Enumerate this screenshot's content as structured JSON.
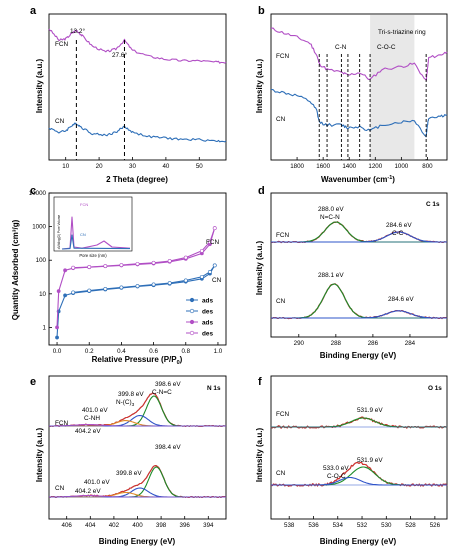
{
  "colors": {
    "fcn": "#b14fc5",
    "cn": "#2e6fb8",
    "fit_green": "#1d8c2a",
    "fit_red": "#d8322f",
    "fit_blue": "#2f54c9",
    "fit_orange": "#e08b2a",
    "shade": "#e8e8e8"
  },
  "chart_data": [
    {
      "id": "a",
      "type": "line",
      "panel_label": "a",
      "xlabel": "2 Theta (degree)",
      "ylabel": "Intensity (a.u.)",
      "xlim": [
        5,
        58
      ],
      "xticks": [
        10,
        20,
        30,
        40,
        50
      ],
      "series": [
        {
          "name": "FCN",
          "x": [
            5,
            8,
            10,
            12,
            13.2,
            15,
            18,
            22,
            25,
            27.6,
            30,
            35,
            40,
            45,
            50,
            55,
            58
          ],
          "y": [
            0.9,
            0.82,
            0.83,
            0.87,
            0.89,
            0.85,
            0.78,
            0.74,
            0.76,
            0.82,
            0.75,
            0.71,
            0.69,
            0.68,
            0.68,
            0.67,
            0.67
          ]
        },
        {
          "name": "CN",
          "x": [
            5,
            8,
            10,
            12,
            13.2,
            15,
            18,
            22,
            25,
            27.6,
            30,
            35,
            40,
            45,
            50,
            55,
            58
          ],
          "y": [
            0.22,
            0.19,
            0.2,
            0.24,
            0.25,
            0.22,
            0.18,
            0.17,
            0.19,
            0.23,
            0.19,
            0.16,
            0.15,
            0.14,
            0.14,
            0.13,
            0.13
          ]
        }
      ],
      "annotations": [
        "13.2°",
        "27.6°"
      ],
      "vlines": [
        13.2,
        27.6
      ]
    },
    {
      "id": "b",
      "type": "line",
      "panel_label": "b",
      "xlabel": "Wavenumber (cm",
      "xlabel_sup": "-1",
      "xlabel_end": ")",
      "ylabel": "Intensity (a.u.)",
      "xlim": [
        2000,
        650
      ],
      "xticks": [
        1800,
        1600,
        1400,
        1200,
        1000,
        800
      ],
      "series": [
        {
          "name": "FCN",
          "x": [
            2000,
            1900,
            1800,
            1700,
            1650,
            1630,
            1570,
            1460,
            1410,
            1320,
            1240,
            1150,
            1000,
            900,
            810,
            800,
            790,
            700,
            650
          ],
          "y": [
            0.9,
            0.87,
            0.84,
            0.8,
            0.72,
            0.66,
            0.62,
            0.6,
            0.58,
            0.6,
            0.55,
            0.62,
            0.64,
            0.66,
            0.54,
            0.62,
            0.7,
            0.72,
            0.74
          ]
        },
        {
          "name": "CN",
          "x": [
            2000,
            1900,
            1800,
            1700,
            1650,
            1630,
            1570,
            1460,
            1410,
            1320,
            1240,
            1150,
            1000,
            900,
            810,
            800,
            790,
            700,
            650
          ],
          "y": [
            0.48,
            0.46,
            0.44,
            0.4,
            0.34,
            0.26,
            0.24,
            0.24,
            0.22,
            0.23,
            0.2,
            0.24,
            0.26,
            0.27,
            0.16,
            0.24,
            0.29,
            0.3,
            0.31
          ]
        }
      ],
      "annotations": [
        "C-N",
        "C-O-C",
        "Tri-s-triazine ring"
      ],
      "vlines": [
        1630,
        1570,
        1460,
        1410,
        1320,
        1240,
        810
      ]
    },
    {
      "id": "c",
      "type": "scatter",
      "panel_label": "c",
      "xlabel": "Relative Pressure (P/P",
      "xlabel_sub": "0",
      "xlabel_end": ")",
      "ylabel": "Quantity Adsorbed (cm³/g)",
      "yscale": "log",
      "xlim": [
        -0.05,
        1.05
      ],
      "xticks": [
        0.0,
        0.2,
        0.4,
        0.6,
        0.8,
        1.0
      ],
      "ylim": [
        0.3,
        10000
      ],
      "yticklabels": [
        "1",
        "10",
        "100",
        "1000",
        "10000"
      ],
      "legend": [
        "ads",
        "des",
        "ads",
        "des"
      ],
      "series": [
        {
          "name": "ads",
          "x": [
            0.0,
            0.01,
            0.05,
            0.1,
            0.2,
            0.3,
            0.4,
            0.5,
            0.6,
            0.7,
            0.8,
            0.9,
            0.95,
            0.98
          ],
          "y": [
            0.5,
            3.0,
            9.0,
            10.5,
            12,
            13.5,
            15,
            16.5,
            18,
            20,
            23,
            28,
            40,
            70
          ]
        },
        {
          "name": "des",
          "x": [
            0.98,
            0.95,
            0.9,
            0.8,
            0.7,
            0.6,
            0.5,
            0.4,
            0.3,
            0.2,
            0.1
          ],
          "y": [
            70,
            45,
            32,
            25,
            21,
            19,
            17,
            15.5,
            14,
            12.5,
            11
          ]
        },
        {
          "name": "ads",
          "x": [
            0.0,
            0.01,
            0.05,
            0.1,
            0.2,
            0.3,
            0.4,
            0.5,
            0.6,
            0.7,
            0.8,
            0.9,
            0.95,
            0.98
          ],
          "y": [
            1.0,
            12,
            50,
            58,
            62,
            66,
            70,
            75,
            80,
            90,
            110,
            160,
            300,
            900
          ]
        },
        {
          "name": "des",
          "x": [
            0.98,
            0.95,
            0.9,
            0.8,
            0.7,
            0.6,
            0.5,
            0.4,
            0.3,
            0.2,
            0.1
          ],
          "y": [
            900,
            350,
            190,
            120,
            95,
            84,
            78,
            72,
            67,
            63,
            60
          ]
        }
      ],
      "annotations": [
        "FCN",
        "CN"
      ],
      "inset": {
        "xlabel": "Pore size (nm)",
        "ylabel": "dV/dlog(D) Pore Volume",
        "labels": [
          "FCN",
          "CN"
        ]
      }
    },
    {
      "id": "d",
      "type": "line",
      "panel_label": "d",
      "title": "C 1s",
      "xlabel": "Binding Energy (eV)",
      "ylabel": "Intensity (a.u.)",
      "xlim": [
        291.5,
        282
      ],
      "xticks": [
        290,
        288,
        286,
        284
      ],
      "series": [
        {
          "name": "FCN",
          "peaks": [
            288.0,
            284.6
          ],
          "heights": [
            0.5,
            0.25
          ]
        },
        {
          "name": "CN",
          "peaks": [
            288.1,
            284.6
          ],
          "heights": [
            0.85,
            0.18
          ]
        }
      ],
      "annotations": [
        "288.0 eV",
        "N=C-N",
        "284.6 eV",
        "C-C",
        "288.1 eV",
        "284.6 eV"
      ]
    },
    {
      "id": "e",
      "type": "line",
      "panel_label": "e",
      "title": "N 1s",
      "xlabel": "Binding Energy (eV)",
      "ylabel": "Intensity (a.u.)",
      "xlim": [
        407.5,
        392.5
      ],
      "xticks": [
        406,
        404,
        402,
        400,
        398,
        396,
        394
      ],
      "series": [
        {
          "name": "FCN",
          "peaks": [
            398.6,
            399.8,
            401.0,
            404.2
          ],
          "heights": [
            1.0,
            0.35,
            0.18,
            0.05
          ]
        },
        {
          "name": "CN",
          "peaks": [
            398.4,
            399.8,
            401.0,
            404.2
          ],
          "heights": [
            1.0,
            0.3,
            0.15,
            0.05
          ]
        }
      ],
      "annotations": [
        "398.6 eV",
        "C-N=C",
        "399.8 eV",
        "N-(C)",
        "401.0 eV",
        "C-NH",
        "404.2 eV",
        "398.4 eV",
        "399.8 eV",
        "401.0 eV",
        "404.2 eV"
      ]
    },
    {
      "id": "f",
      "type": "line",
      "panel_label": "f",
      "title": "O 1s",
      "xlabel": "Binding Energy (eV)",
      "ylabel": "Intensity (a.u.)",
      "xlim": [
        539.5,
        525
      ],
      "xticks": [
        538,
        536,
        534,
        532,
        530,
        528,
        526
      ],
      "series": [
        {
          "name": "FCN",
          "peaks": [
            531.9
          ],
          "heights": [
            0.3
          ]
        },
        {
          "name": "CN",
          "peaks": [
            531.9,
            533.0
          ],
          "heights": [
            0.6,
            0.25
          ]
        }
      ],
      "annotations": [
        "531.9 eV",
        "531.9 eV",
        "533.0 eV",
        "C-O-C"
      ]
    }
  ],
  "labels": {
    "fcn": "FCN",
    "cn": "CN",
    "sub3": "3"
  }
}
